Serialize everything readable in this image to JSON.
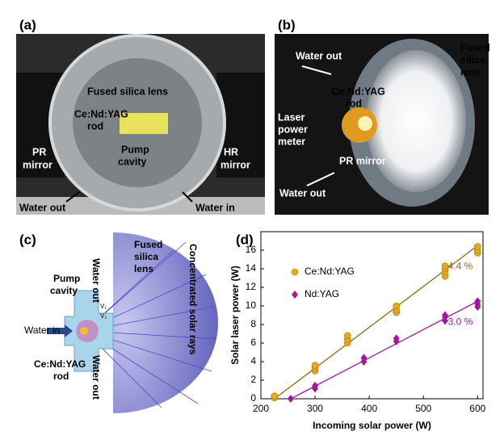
{
  "panels": {
    "a": {
      "label": "(a)",
      "fused_lens": "Fused silica  lens",
      "rod": [
        "Ce:Nd:YAG",
        "rod"
      ],
      "cavity": [
        "Pump",
        "cavity"
      ],
      "pr": [
        "PR",
        "mirror"
      ],
      "hr": [
        "HR",
        "mirror"
      ],
      "water_out": "Water out",
      "water_in": "Water in"
    },
    "b": {
      "label": "(b)",
      "water_out_top": "Water out",
      "fused_lens": [
        "Fused",
        "silica",
        "lens"
      ],
      "rod": [
        "Ce:Nd:YAG",
        "rod"
      ],
      "meter": [
        "Laser",
        "power",
        "meter"
      ],
      "pr": "PR mirror",
      "water_out_bottom": "Water out"
    },
    "c": {
      "label": "(c)",
      "cavity": [
        "Pump",
        "cavity"
      ],
      "water_out_top": "Water out",
      "fused_lens": [
        "Fused",
        "silica",
        "lens"
      ],
      "rays": "Concentrated solar rays",
      "water_in": "Water in",
      "rod": [
        "Ce:Nd:YAG",
        "rod"
      ],
      "water_out_bottom": "Water out",
      "v1": "V₁",
      "v2": "V₂"
    },
    "d": {
      "label": "(d)"
    }
  },
  "chart_data": {
    "type": "scatter",
    "xlabel": "Incoming solar power (W)",
    "ylabel": "Solar laser power (W)",
    "xlim": [
      200,
      610
    ],
    "ylim": [
      0,
      18
    ],
    "xticks": [
      200,
      300,
      400,
      500,
      600
    ],
    "yticks": [
      0,
      2,
      4,
      6,
      8,
      10,
      12,
      14,
      16
    ],
    "series": [
      {
        "name": "Ce:Nd:YAG",
        "color": "#e3a91f",
        "marker": "circle",
        "x": [
          225,
          225,
          300,
          300,
          300,
          360,
          360,
          360,
          450,
          450,
          450,
          540,
          540,
          540,
          540,
          600,
          600,
          600
        ],
        "values": [
          0.1,
          0.3,
          3.0,
          3.3,
          3.6,
          6.0,
          6.4,
          6.8,
          9.3,
          9.6,
          10.0,
          13.2,
          13.7,
          14.0,
          14.3,
          15.7,
          16.0,
          16.4
        ]
      },
      {
        "name": "Nd:YAG",
        "color": "#a5169c",
        "marker": "diamond",
        "x": [
          255,
          300,
          300,
          390,
          390,
          450,
          450,
          540,
          540,
          540,
          600,
          600,
          600
        ],
        "values": [
          0,
          1.1,
          1.4,
          4.0,
          4.4,
          6.2,
          6.5,
          8.4,
          8.8,
          9.0,
          9.9,
          10.2,
          10.5
        ]
      }
    ],
    "fits": [
      {
        "color": "#8a6a10",
        "x": [
          225,
          600
        ],
        "values": [
          0,
          16.5
        ]
      },
      {
        "color": "#a5169c",
        "x": [
          255,
          600
        ],
        "values": [
          0,
          10.5
        ]
      }
    ],
    "annotations": [
      "4.4 %",
      "3.0 %"
    ]
  }
}
